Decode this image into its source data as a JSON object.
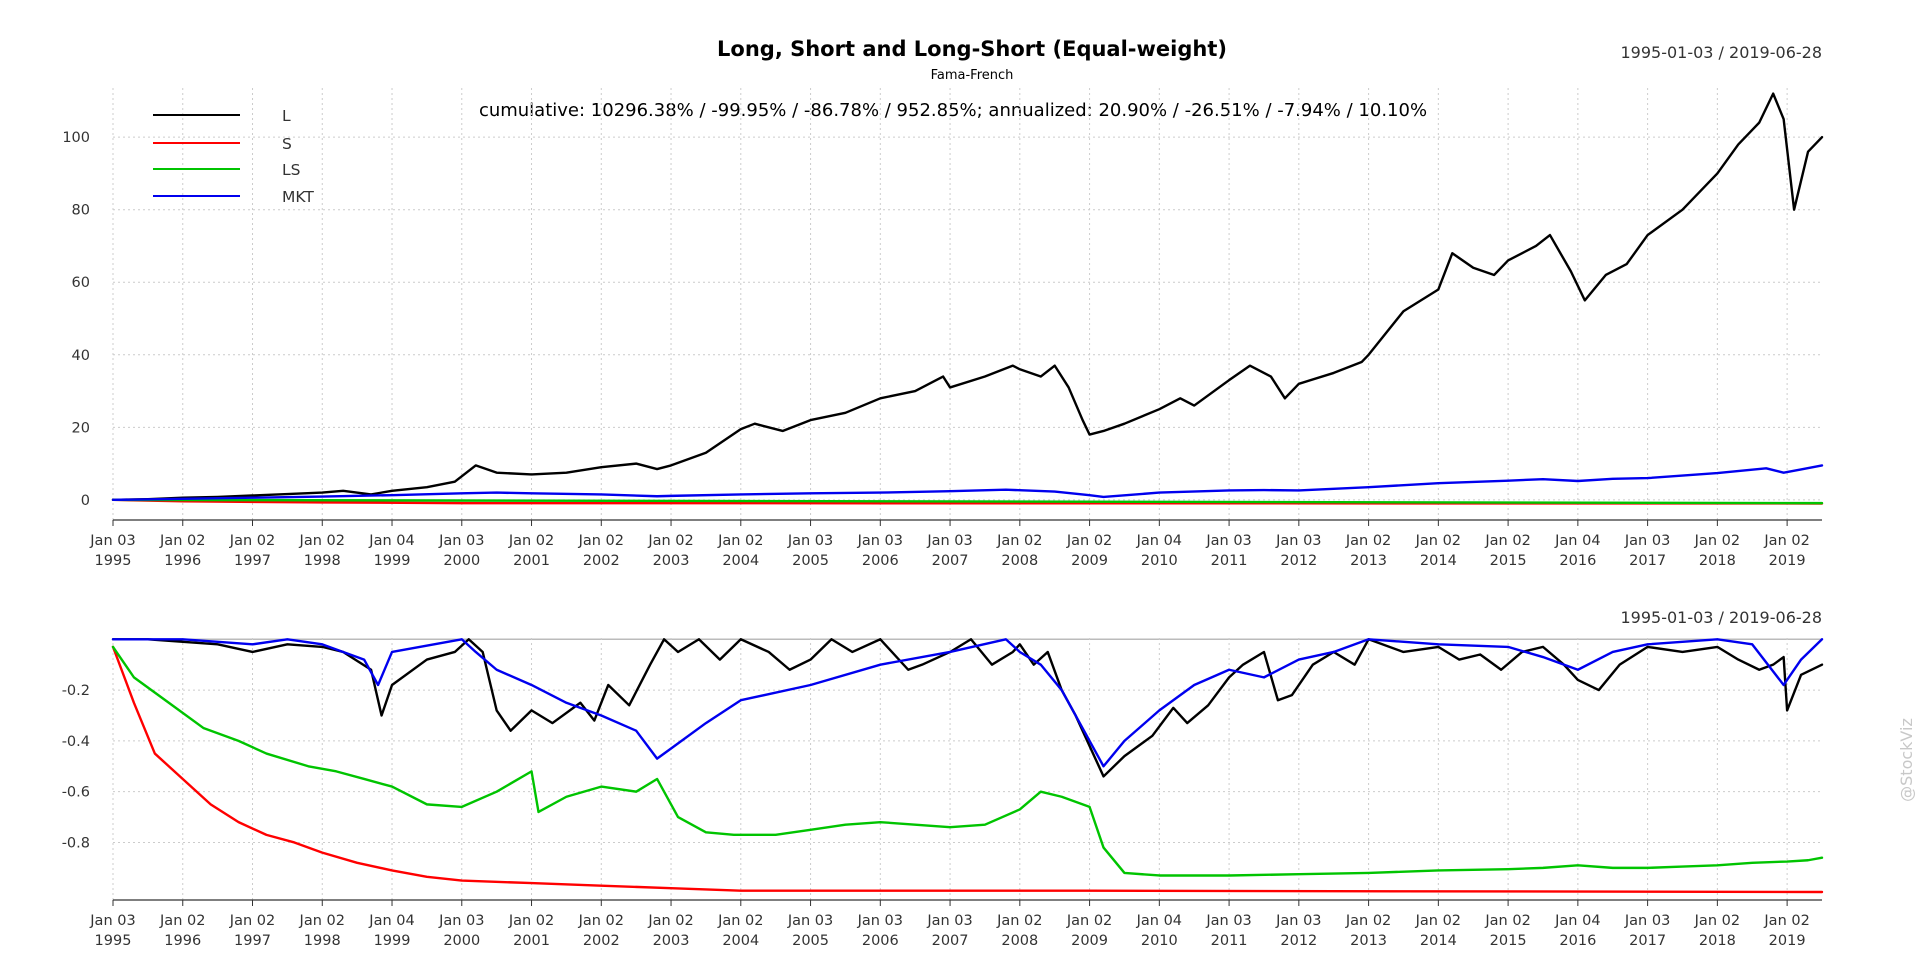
{
  "watermark": "@StockViz",
  "colors": {
    "L": "#000000",
    "S": "#ff0000",
    "LS": "#00c400",
    "MKT": "#0000ee"
  },
  "chart_data": [
    {
      "id": "cumulative",
      "type": "line",
      "title": "Long, Short and Long-Short (Equal-weight)",
      "subtitle": "Fama-French",
      "date_range": "1995-01-03 / 2019-06-28",
      "annotation": "cumulative: 10296.38% / -99.95% / -86.78% / 952.85%; annualized: 20.90% / -26.51% / -7.94% / 10.10%",
      "legend_placement": "top-left",
      "grid": true,
      "ylim": [
        -5,
        113
      ],
      "yticks": [
        0,
        20,
        40,
        60,
        80,
        100
      ],
      "xlim": [
        1995.0,
        2019.5
      ],
      "xticks": [
        {
          "year": 1995,
          "label1": "Jan 03",
          "label2": "1995"
        },
        {
          "year": 1996,
          "label1": "Jan 02",
          "label2": "1996"
        },
        {
          "year": 1997,
          "label1": "Jan 02",
          "label2": "1997"
        },
        {
          "year": 1998,
          "label1": "Jan 02",
          "label2": "1998"
        },
        {
          "year": 1999,
          "label1": "Jan 04",
          "label2": "1999"
        },
        {
          "year": 2000,
          "label1": "Jan 03",
          "label2": "2000"
        },
        {
          "year": 2001,
          "label1": "Jan 02",
          "label2": "2001"
        },
        {
          "year": 2002,
          "label1": "Jan 02",
          "label2": "2002"
        },
        {
          "year": 2003,
          "label1": "Jan 02",
          "label2": "2003"
        },
        {
          "year": 2004,
          "label1": "Jan 02",
          "label2": "2004"
        },
        {
          "year": 2005,
          "label1": "Jan 03",
          "label2": "2005"
        },
        {
          "year": 2006,
          "label1": "Jan 03",
          "label2": "2006"
        },
        {
          "year": 2007,
          "label1": "Jan 03",
          "label2": "2007"
        },
        {
          "year": 2008,
          "label1": "Jan 02",
          "label2": "2008"
        },
        {
          "year": 2009,
          "label1": "Jan 02",
          "label2": "2009"
        },
        {
          "year": 2010,
          "label1": "Jan 04",
          "label2": "2010"
        },
        {
          "year": 2011,
          "label1": "Jan 03",
          "label2": "2011"
        },
        {
          "year": 2012,
          "label1": "Jan 03",
          "label2": "2012"
        },
        {
          "year": 2013,
          "label1": "Jan 02",
          "label2": "2013"
        },
        {
          "year": 2014,
          "label1": "Jan 02",
          "label2": "2014"
        },
        {
          "year": 2015,
          "label1": "Jan 02",
          "label2": "2015"
        },
        {
          "year": 2016,
          "label1": "Jan 04",
          "label2": "2016"
        },
        {
          "year": 2017,
          "label1": "Jan 03",
          "label2": "2017"
        },
        {
          "year": 2018,
          "label1": "Jan 02",
          "label2": "2018"
        },
        {
          "year": 2019,
          "label1": "Jan 02",
          "label2": "2019"
        }
      ],
      "series": [
        {
          "name": "L",
          "color": "#000000",
          "x": [
            1995.0,
            1995.5,
            1996.0,
            1996.5,
            1997.0,
            1997.5,
            1998.0,
            1998.3,
            1998.7,
            1999.0,
            1999.5,
            1999.9,
            2000.2,
            2000.5,
            2001.0,
            2001.5,
            2002.0,
            2002.5,
            2002.8,
            2003.0,
            2003.5,
            2004.0,
            2004.2,
            2004.6,
            2005.0,
            2005.5,
            2006.0,
            2006.5,
            2006.9,
            2007.0,
            2007.5,
            2007.9,
            2008.0,
            2008.3,
            2008.5,
            2008.7,
            2008.9,
            2009.0,
            2009.2,
            2009.5,
            2010.0,
            2010.3,
            2010.5,
            2011.0,
            2011.3,
            2011.6,
            2011.8,
            2012.0,
            2012.5,
            2012.9,
            2013.0,
            2013.5,
            2014.0,
            2014.2,
            2014.5,
            2014.8,
            2015.0,
            2015.4,
            2015.6,
            2015.9,
            2016.1,
            2016.4,
            2016.7,
            2017.0,
            2017.5,
            2018.0,
            2018.3,
            2018.6,
            2018.8,
            2018.95,
            2019.1,
            2019.3,
            2019.5
          ],
          "y": [
            0,
            0.2,
            0.6,
            0.8,
            1.2,
            1.6,
            2.0,
            2.5,
            1.5,
            2.5,
            3.5,
            5.0,
            9.5,
            7.5,
            7.0,
            7.5,
            9.0,
            10.0,
            8.5,
            9.5,
            13.0,
            19.5,
            21.0,
            19.0,
            22.0,
            24.0,
            28.0,
            30.0,
            34.0,
            31.0,
            34.0,
            37.0,
            36.0,
            34.0,
            37.0,
            31.0,
            22.0,
            18.0,
            19.0,
            21.0,
            25.0,
            28.0,
            26.0,
            33.0,
            37.0,
            34.0,
            28.0,
            32.0,
            35.0,
            38.0,
            40.0,
            52.0,
            58.0,
            68.0,
            64.0,
            62.0,
            66.0,
            70.0,
            73.0,
            63.0,
            55.0,
            62.0,
            65.0,
            73.0,
            80.0,
            90.0,
            98.0,
            104.0,
            112.0,
            105.0,
            80.0,
            96.0,
            100.0
          ]
        },
        {
          "name": "S",
          "color": "#ff0000",
          "x": [
            1995.0,
            1996.0,
            1998.0,
            2000.0,
            2019.5
          ],
          "y": [
            0,
            -0.4,
            -0.7,
            -0.9,
            -1.0
          ]
        },
        {
          "name": "LS",
          "color": "#00c400",
          "x": [
            1995.0,
            2019.5
          ],
          "y": [
            0,
            -0.9
          ]
        },
        {
          "name": "MKT",
          "color": "#0000ee",
          "x": [
            1995.0,
            1996.0,
            1997.0,
            1998.0,
            1999.0,
            2000.0,
            2000.5,
            2001.0,
            2002.0,
            2002.8,
            2003.0,
            2004.0,
            2005.0,
            2006.0,
            2007.0,
            2007.8,
            2008.5,
            2009.0,
            2009.2,
            2010.0,
            2011.0,
            2011.5,
            2012.0,
            2013.0,
            2014.0,
            2015.0,
            2015.5,
            2016.0,
            2016.5,
            2017.0,
            2018.0,
            2018.7,
            2018.95,
            2019.2,
            2019.5
          ],
          "y": [
            0,
            0.3,
            0.6,
            0.9,
            1.3,
            1.8,
            2.0,
            1.8,
            1.5,
            1.0,
            1.1,
            1.5,
            1.8,
            2.0,
            2.4,
            2.8,
            2.3,
            1.3,
            0.8,
            2.0,
            2.6,
            2.7,
            2.6,
            3.5,
            4.6,
            5.3,
            5.7,
            5.2,
            5.8,
            6.0,
            7.4,
            8.7,
            7.5,
            8.4,
            9.5
          ]
        }
      ]
    },
    {
      "id": "drawdown",
      "type": "line",
      "date_range": "1995-01-03 / 2019-06-28",
      "grid": true,
      "ylim": [
        -0.995,
        0.005
      ],
      "yticks": [
        -0.2,
        -0.4,
        -0.6,
        -0.8
      ],
      "ytick_labels": [
        "-0.2",
        "-0.4",
        "-0.6",
        "-0.8"
      ],
      "xlim": [
        1995.0,
        2019.5
      ],
      "series": [
        {
          "name": "L",
          "color": "#000000",
          "x": [
            1995.0,
            1995.5,
            1996.0,
            1996.5,
            1997.0,
            1997.5,
            1998.0,
            1998.3,
            1998.7,
            1998.85,
            1999.0,
            1999.5,
            1999.9,
            2000.1,
            2000.3,
            2000.5,
            2000.7,
            2001.0,
            2001.3,
            2001.7,
            2001.9,
            2002.1,
            2002.4,
            2002.7,
            2002.9,
            2003.1,
            2003.4,
            2003.7,
            2004.0,
            2004.4,
            2004.7,
            2005.0,
            2005.3,
            2005.6,
            2006.0,
            2006.4,
            2006.6,
            2007.0,
            2007.3,
            2007.6,
            2007.9,
            2008.0,
            2008.2,
            2008.4,
            2008.6,
            2008.8,
            2009.0,
            2009.2,
            2009.5,
            2009.9,
            2010.2,
            2010.4,
            2010.7,
            2011.0,
            2011.2,
            2011.5,
            2011.7,
            2011.9,
            2012.2,
            2012.5,
            2012.8,
            2013.0,
            2013.5,
            2014.0,
            2014.3,
            2014.6,
            2014.9,
            2015.2,
            2015.5,
            2015.8,
            2016.0,
            2016.3,
            2016.6,
            2017.0,
            2017.5,
            2018.0,
            2018.3,
            2018.6,
            2018.8,
            2018.95,
            2019.0,
            2019.2,
            2019.5
          ],
          "y": [
            0,
            0,
            -0.01,
            -0.02,
            -0.05,
            -0.02,
            -0.03,
            -0.05,
            -0.12,
            -0.3,
            -0.18,
            -0.08,
            -0.05,
            0,
            -0.05,
            -0.28,
            -0.36,
            -0.28,
            -0.33,
            -0.25,
            -0.32,
            -0.18,
            -0.26,
            -0.1,
            0,
            -0.05,
            0,
            -0.08,
            0,
            -0.05,
            -0.12,
            -0.08,
            0,
            -0.05,
            0,
            -0.12,
            -0.1,
            -0.05,
            0,
            -0.1,
            -0.05,
            -0.02,
            -0.1,
            -0.05,
            -0.2,
            -0.3,
            -0.42,
            -0.54,
            -0.46,
            -0.38,
            -0.27,
            -0.33,
            -0.26,
            -0.15,
            -0.1,
            -0.05,
            -0.24,
            -0.22,
            -0.1,
            -0.05,
            -0.1,
            0,
            -0.05,
            -0.03,
            -0.08,
            -0.06,
            -0.12,
            -0.05,
            -0.03,
            -0.1,
            -0.16,
            -0.2,
            -0.1,
            -0.03,
            -0.05,
            -0.03,
            -0.08,
            -0.12,
            -0.1,
            -0.07,
            -0.28,
            -0.14,
            -0.1
          ]
        },
        {
          "name": "S",
          "color": "#ff0000",
          "x": [
            1995.0,
            1995.3,
            1995.6,
            1996.0,
            1996.4,
            1996.8,
            1997.2,
            1997.6,
            1998.0,
            1998.5,
            1999.0,
            1999.5,
            2000.0,
            2001.0,
            2002.0,
            2003.0,
            2004.0,
            2009.0,
            2019.5
          ],
          "y": [
            -0.03,
            -0.25,
            -0.45,
            -0.55,
            -0.65,
            -0.72,
            -0.77,
            -0.8,
            -0.84,
            -0.88,
            -0.91,
            -0.935,
            -0.95,
            -0.96,
            -0.97,
            -0.98,
            -0.99,
            -0.99,
            -0.995
          ]
        },
        {
          "name": "LS",
          "color": "#00c400",
          "x": [
            1995.0,
            1995.3,
            1995.8,
            1996.3,
            1996.8,
            1997.2,
            1997.8,
            1998.2,
            1998.6,
            1999.0,
            1999.5,
            2000.0,
            2000.5,
            2001.0,
            2001.1,
            2001.5,
            2002.0,
            2002.5,
            2002.8,
            2003.1,
            2003.5,
            2003.9,
            2004.5,
            2005.0,
            2005.5,
            2006.0,
            2006.5,
            2007.0,
            2007.5,
            2008.0,
            2008.3,
            2008.6,
            2009.0,
            2009.2,
            2009.5,
            2010.0,
            2011.0,
            2012.0,
            2013.0,
            2014.0,
            2015.0,
            2015.5,
            2016.0,
            2016.5,
            2017.0,
            2017.5,
            2018.0,
            2018.5,
            2019.0,
            2019.3,
            2019.5
          ],
          "y": [
            -0.03,
            -0.15,
            -0.25,
            -0.35,
            -0.4,
            -0.45,
            -0.5,
            -0.52,
            -0.55,
            -0.58,
            -0.65,
            -0.66,
            -0.6,
            -0.52,
            -0.68,
            -0.62,
            -0.58,
            -0.6,
            -0.55,
            -0.7,
            -0.76,
            -0.77,
            -0.77,
            -0.75,
            -0.73,
            -0.72,
            -0.73,
            -0.74,
            -0.73,
            -0.67,
            -0.6,
            -0.62,
            -0.66,
            -0.82,
            -0.92,
            -0.93,
            -0.93,
            -0.925,
            -0.92,
            -0.91,
            -0.905,
            -0.9,
            -0.89,
            -0.9,
            -0.9,
            -0.895,
            -0.89,
            -0.88,
            -0.875,
            -0.87,
            -0.86
          ]
        },
        {
          "name": "MKT",
          "color": "#0000ee",
          "x": [
            1995.0,
            1996.0,
            1997.0,
            1997.5,
            1998.0,
            1998.6,
            1998.8,
            1999.0,
            2000.0,
            2000.2,
            2000.5,
            2001.0,
            2001.5,
            2002.0,
            2002.5,
            2002.8,
            2003.0,
            2003.5,
            2004.0,
            2005.0,
            2006.0,
            2007.0,
            2007.8,
            2008.0,
            2008.3,
            2008.6,
            2008.9,
            2009.2,
            2009.5,
            2010.0,
            2010.5,
            2011.0,
            2011.5,
            2012.0,
            2012.5,
            2013.0,
            2014.0,
            2015.0,
            2015.5,
            2016.0,
            2016.5,
            2017.0,
            2018.0,
            2018.5,
            2018.95,
            2019.2,
            2019.5
          ],
          "y": [
            0,
            0,
            -0.02,
            0,
            -0.02,
            -0.08,
            -0.18,
            -0.05,
            0,
            -0.05,
            -0.12,
            -0.18,
            -0.25,
            -0.3,
            -0.36,
            -0.47,
            -0.43,
            -0.33,
            -0.24,
            -0.18,
            -0.1,
            -0.05,
            0,
            -0.05,
            -0.1,
            -0.2,
            -0.35,
            -0.5,
            -0.4,
            -0.28,
            -0.18,
            -0.12,
            -0.15,
            -0.08,
            -0.05,
            0,
            -0.02,
            -0.03,
            -0.07,
            -0.12,
            -0.05,
            -0.02,
            0,
            -0.02,
            -0.18,
            -0.08,
            0
          ]
        }
      ]
    }
  ]
}
